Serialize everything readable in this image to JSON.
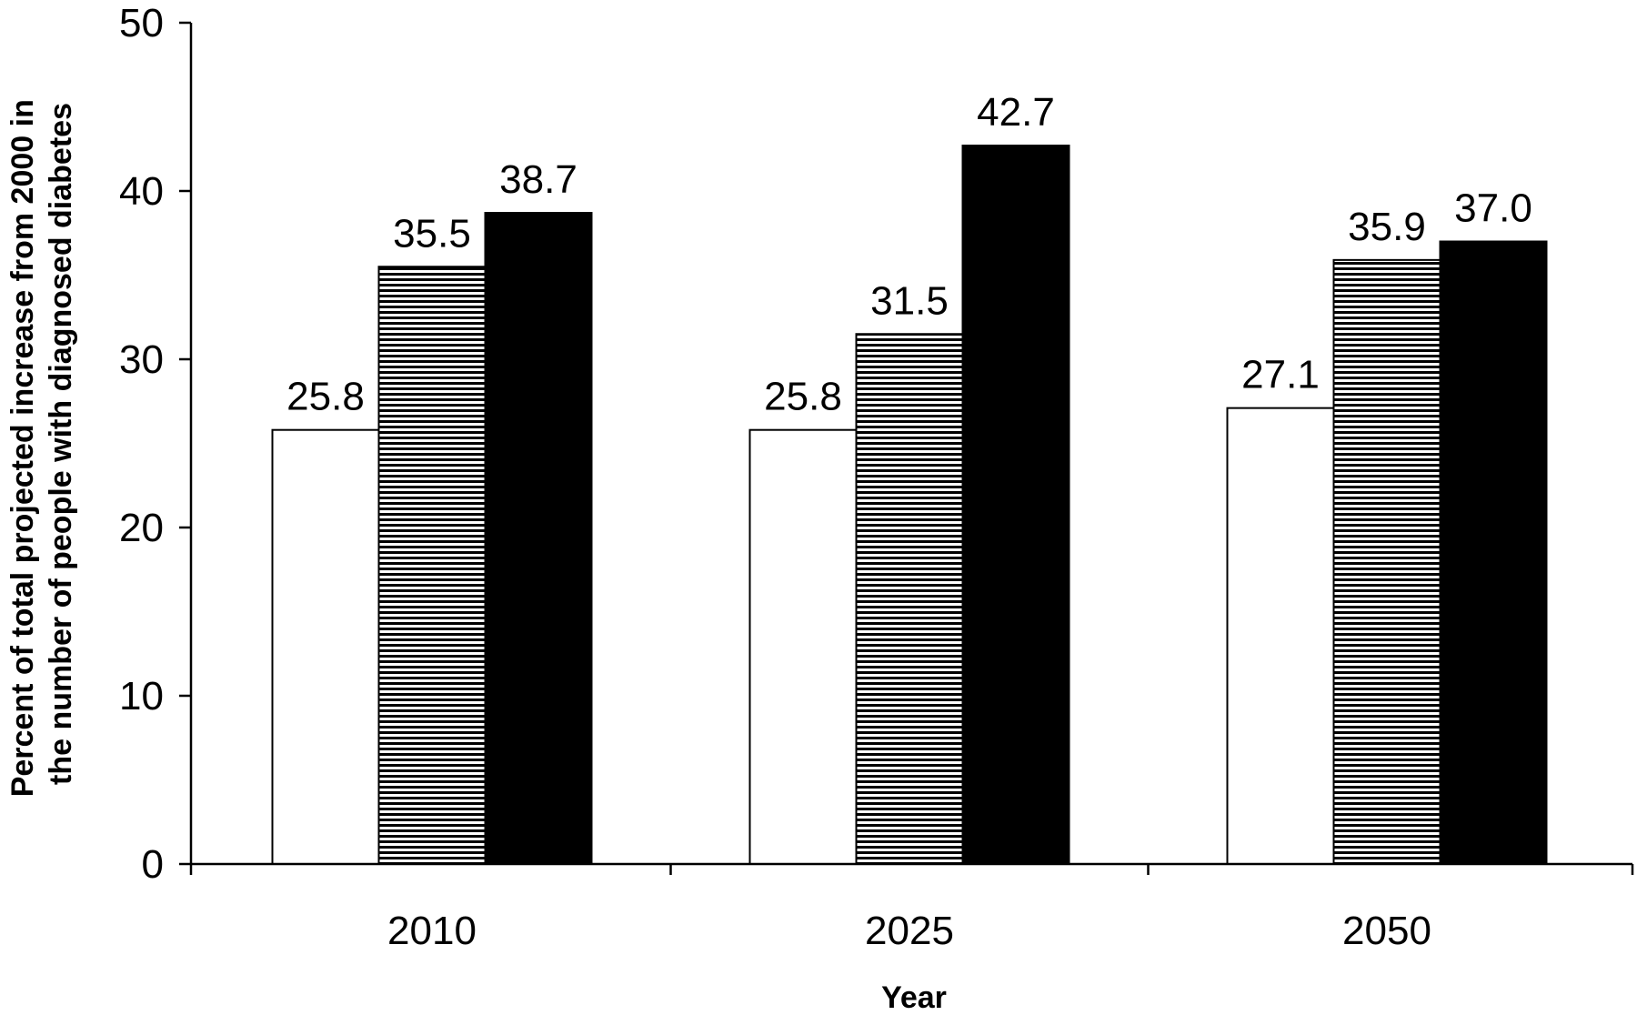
{
  "chart_data": {
    "type": "bar",
    "categories": [
      "2010",
      "2025",
      "2050"
    ],
    "series": [
      {
        "values": [
          25.8,
          25.8,
          27.1
        ],
        "fill": "#ffffff",
        "pattern": "none"
      },
      {
        "values": [
          35.5,
          31.5,
          35.9
        ],
        "fill": "#ffffff",
        "pattern": "horizontal-stripes"
      },
      {
        "values": [
          38.7,
          42.7,
          37.0
        ],
        "fill": "#000000",
        "pattern": "none"
      }
    ],
    "data_labels": [
      [
        "25.8",
        "35.5",
        "38.7"
      ],
      [
        "25.8",
        "31.5",
        "42.7"
      ],
      [
        "27.1",
        "35.9",
        "37.0"
      ]
    ],
    "ylim": [
      0,
      50
    ],
    "yticks": [
      0,
      10,
      20,
      30,
      40,
      50
    ],
    "ytick_labels": [
      "0",
      "10",
      "20",
      "30",
      "40",
      "50"
    ],
    "xlabel": "Year",
    "ylabel": "Percent of total projected increase from 2000 in the number of people with diagnosed diabetes",
    "ylabel_lines": [
      "Percent of total projected increase from 2000 in",
      "the number of people with diagnosed diabetes"
    ],
    "title": "",
    "grid": false,
    "legend": false,
    "colors": {
      "axis": "#000000",
      "stripe": "#000000",
      "background": "#ffffff"
    }
  }
}
